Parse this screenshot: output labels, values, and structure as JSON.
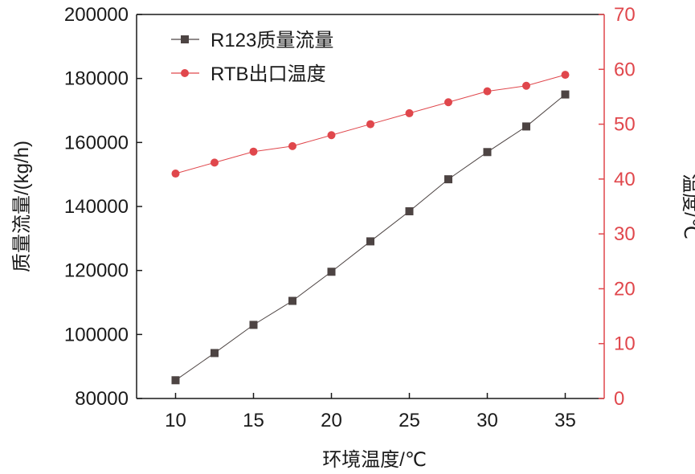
{
  "chart_data": {
    "type": "line",
    "xlabel": "环境温度/℃",
    "ylabel_left": "质量流量/(kg/h)",
    "ylabel_right": "温度/℃",
    "xlim": [
      7.5,
      37.5
    ],
    "ylim_left": [
      80000,
      200000
    ],
    "ylim_right": [
      0,
      70
    ],
    "xticks": [
      10,
      15,
      20,
      25,
      30,
      35
    ],
    "yticks_left": [
      80000,
      100000,
      120000,
      140000,
      160000,
      180000,
      200000
    ],
    "yticks_right": [
      0,
      10,
      20,
      30,
      40,
      50,
      60,
      70
    ],
    "x": [
      10,
      12.5,
      15,
      17.5,
      20,
      22.5,
      25,
      27.5,
      30,
      32.5,
      35
    ],
    "series": [
      {
        "name": "R123质量流量",
        "axis": "left",
        "marker": "square",
        "color": "#4d4443",
        "values": [
          85700,
          94200,
          103000,
          110500,
          119600,
          129100,
          138500,
          148500,
          157000,
          165000,
          175000
        ]
      },
      {
        "name": "RTB出口温度",
        "axis": "right",
        "marker": "circle",
        "color": "#e0474c",
        "values": [
          41,
          43,
          45,
          46,
          48,
          50,
          52,
          54,
          56,
          57,
          59
        ]
      }
    ],
    "legend_position": "top-left",
    "grid": false,
    "right_axis_color": "#e0474c"
  }
}
